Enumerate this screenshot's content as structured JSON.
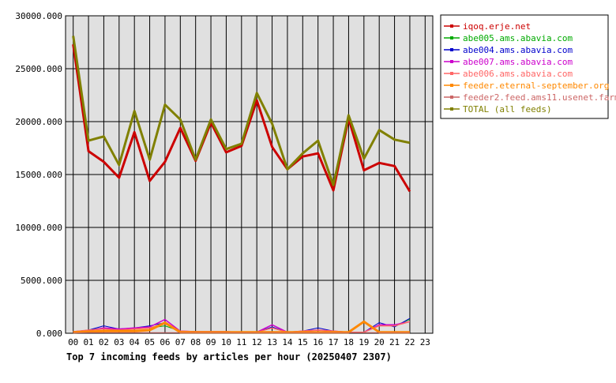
{
  "chart_data": {
    "type": "line",
    "title": "Top 7 incoming feeds by articles per hour (20250407 2307)",
    "categories": [
      "00",
      "01",
      "02",
      "03",
      "04",
      "05",
      "06",
      "07",
      "08",
      "09",
      "10",
      "11",
      "12",
      "13",
      "14",
      "15",
      "16",
      "17",
      "18",
      "19",
      "20",
      "21",
      "22",
      "23"
    ],
    "ylim": [
      0,
      30000
    ],
    "y_ticks": [
      "0.000",
      "5000.000",
      "10000.000",
      "15000.000",
      "20000.000",
      "25000.000",
      "30000.000"
    ],
    "y_tick_values": [
      0,
      5000,
      10000,
      15000,
      20000,
      25000,
      30000
    ],
    "grid": true,
    "legend_position": "right",
    "series": [
      {
        "name": "iqoq.erje.net",
        "color": "#cc0000",
        "width": 3,
        "values": [
          27300,
          17200,
          16200,
          14700,
          19000,
          14400,
          16200,
          19400,
          16300,
          19900,
          17100,
          17700,
          22000,
          17600,
          15500,
          16700,
          17000,
          13500,
          20300,
          15400,
          16100,
          15800,
          13400,
          null
        ]
      },
      {
        "name": "abe005.ams.abavia.com",
        "color": "#00aa00",
        "width": 1,
        "values": [
          150,
          300,
          500,
          300,
          400,
          500,
          700,
          200,
          150,
          150,
          150,
          100,
          100,
          500,
          100,
          200,
          300,
          200,
          100,
          100,
          800,
          700,
          1300,
          null
        ]
      },
      {
        "name": "abe004.ams.abavia.com",
        "color": "#0000cc",
        "width": 1,
        "values": [
          150,
          300,
          700,
          400,
          500,
          700,
          1000,
          200,
          150,
          150,
          150,
          100,
          100,
          600,
          100,
          200,
          500,
          200,
          100,
          100,
          1000,
          600,
          1400,
          null
        ]
      },
      {
        "name": "abe007.ams.abavia.com",
        "color": "#cc00cc",
        "width": 1.5,
        "values": [
          150,
          250,
          500,
          400,
          500,
          600,
          1300,
          200,
          150,
          150,
          150,
          100,
          100,
          800,
          100,
          200,
          300,
          200,
          100,
          100,
          800,
          800,
          1100,
          null
        ]
      },
      {
        "name": "abe006.ams.abavia.com",
        "color": "#ff6666",
        "width": 1.5,
        "values": [
          150,
          300,
          400,
          300,
          400,
          500,
          900,
          200,
          150,
          150,
          150,
          100,
          100,
          500,
          100,
          200,
          300,
          200,
          100,
          100,
          700,
          700,
          1100,
          null
        ]
      },
      {
        "name": "feeder.eternal-september.org",
        "color": "#ff8800",
        "width": 3,
        "values": [
          100,
          150,
          200,
          200,
          200,
          300,
          1000,
          100,
          100,
          100,
          100,
          100,
          100,
          100,
          100,
          100,
          100,
          100,
          100,
          1100,
          100,
          100,
          100,
          null
        ]
      },
      {
        "name": "feeder2.feed.ams11.usenet.farm",
        "color": "#cc6666",
        "width": 1,
        "values": [
          50,
          50,
          50,
          50,
          50,
          50,
          50,
          50,
          50,
          50,
          50,
          50,
          50,
          50,
          50,
          50,
          50,
          50,
          50,
          50,
          50,
          50,
          50,
          null
        ]
      },
      {
        "name": "TOTAL (all feeds)",
        "color": "#808000",
        "width": 3,
        "values": [
          28100,
          18200,
          18600,
          15900,
          21000,
          16400,
          21600,
          20200,
          16400,
          20200,
          17400,
          17900,
          22700,
          19800,
          15500,
          17000,
          18200,
          14000,
          20600,
          16500,
          19200,
          18300,
          18000,
          null
        ]
      }
    ]
  }
}
